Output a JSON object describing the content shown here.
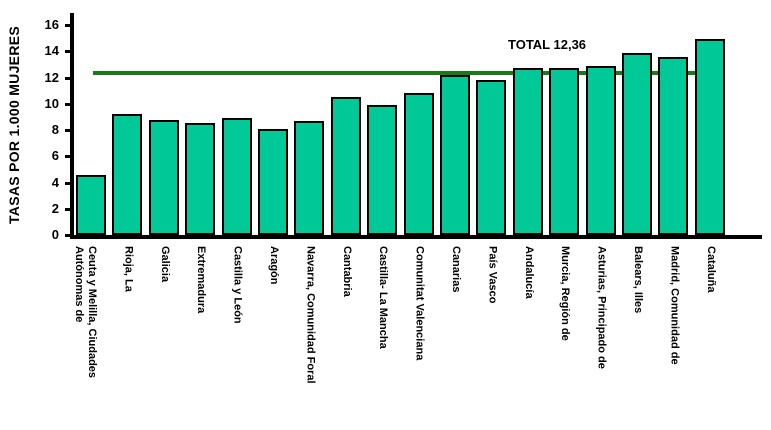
{
  "chart_data": {
    "type": "bar",
    "title": "",
    "xlabel": "",
    "ylabel": "TASAS POR 1.000 MUJERES",
    "ylim": [
      0,
      16
    ],
    "y_ticks": [
      0,
      2,
      4,
      6,
      8,
      10,
      12,
      14,
      16
    ],
    "grid": false,
    "legend_position": "none",
    "categories": [
      "Ceuta y Melilla, Ciudades Autónomas de",
      "Rioja, La",
      "Galicia",
      "Extremadura",
      "Castilla y León",
      "Aragón",
      "Navarra, Comunidad Foral",
      "Cantabria",
      "Castilla- La Mancha",
      "Comunitat Valenciana",
      "Canarias",
      "País Vasco",
      "Andalucía",
      "Murcia, Región de",
      "Asturias, Principado de",
      "Balears, Illes",
      "Madrid, Comunidad de",
      "Cataluña"
    ],
    "values": [
      4.6,
      9.2,
      8.8,
      8.5,
      8.9,
      8.1,
      8.7,
      10.5,
      9.9,
      10.8,
      12.2,
      11.8,
      12.7,
      12.7,
      12.9,
      13.9,
      13.6,
      14.9
    ],
    "reference_line": {
      "label": "TOTAL 12,36",
      "value": 12.36
    },
    "colors": {
      "bar_fill": "#00c896",
      "bar_border": "#000000",
      "reference_line": "#1a7a1a",
      "axis": "#000000",
      "text": "#000000"
    }
  }
}
